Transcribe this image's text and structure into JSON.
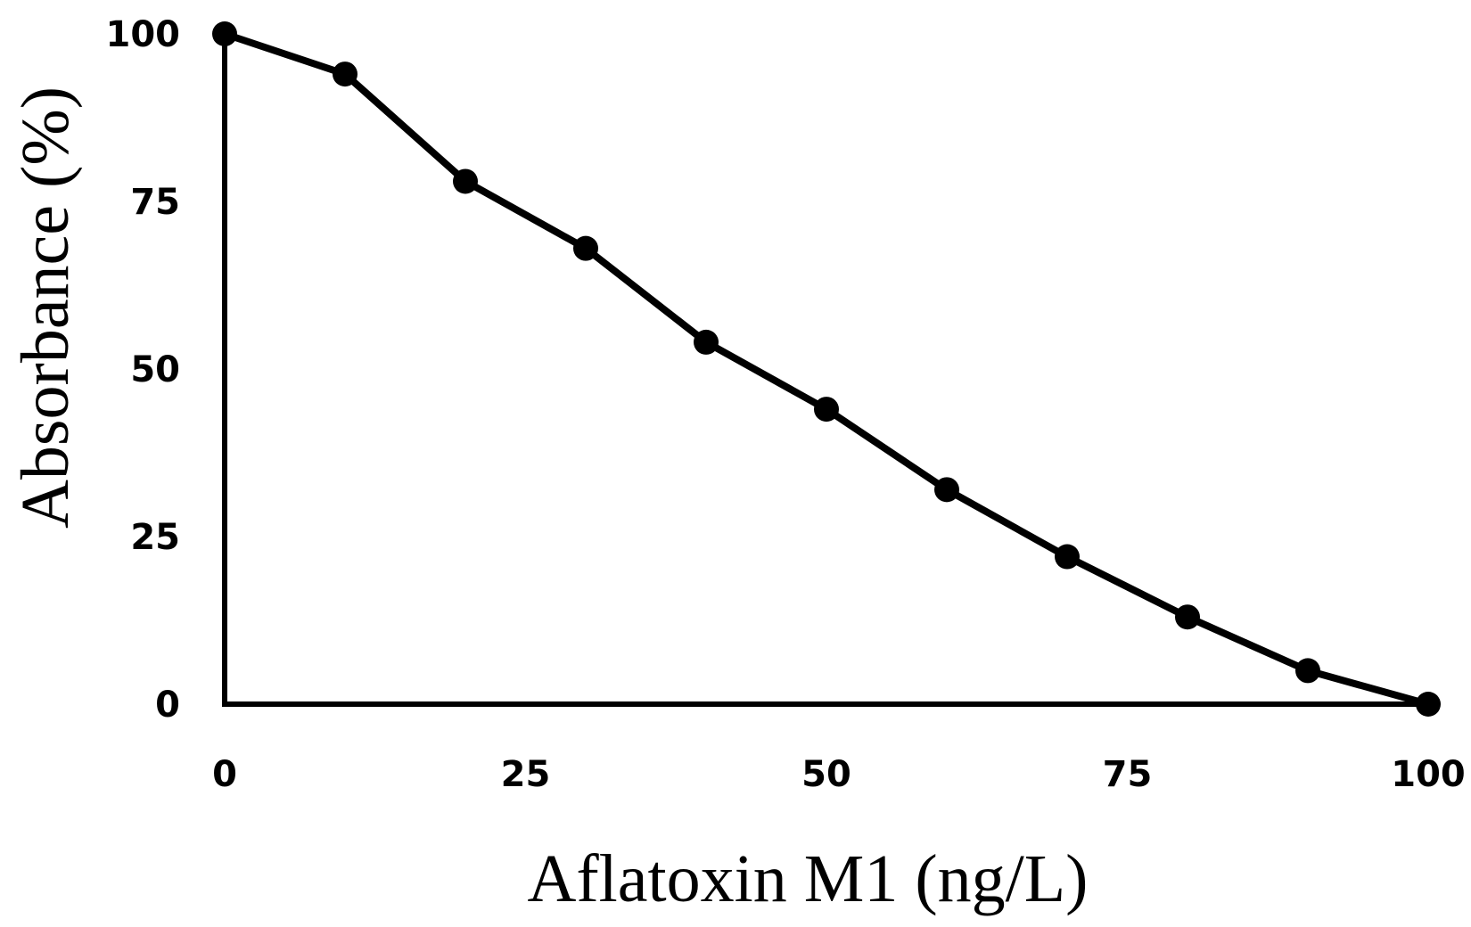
{
  "chart_data": {
    "type": "line",
    "title": "",
    "xlabel": "Aflatoxin M1 (ng/L)",
    "ylabel": "Absorbance (%)",
    "xlim": [
      0,
      100
    ],
    "ylim": [
      0,
      100
    ],
    "x_ticks": [
      "0",
      "25",
      "50",
      "75",
      "100"
    ],
    "y_ticks": [
      "0",
      "25",
      "50",
      "75",
      "100"
    ],
    "grid": false,
    "legend": "none",
    "series": [
      {
        "x": [
          0,
          10,
          20,
          30,
          40,
          50,
          60,
          70,
          80,
          90,
          100
        ],
        "y": [
          100,
          94,
          78,
          68,
          54,
          44,
          32,
          22,
          13,
          5,
          0
        ],
        "color": "#000000",
        "marker": "circle"
      }
    ]
  }
}
